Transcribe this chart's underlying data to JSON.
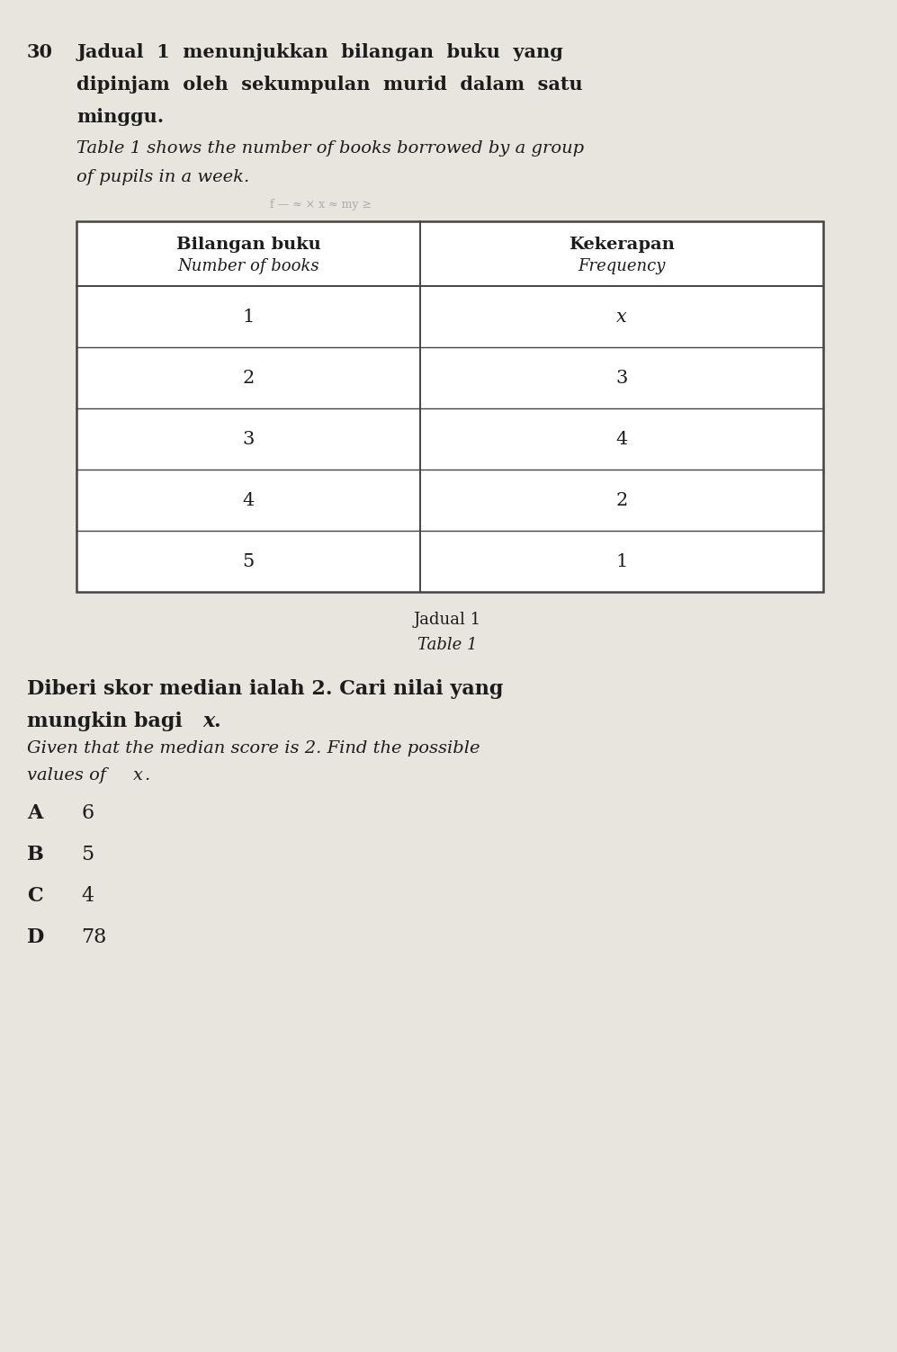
{
  "question_number": "30",
  "malay_line1": "Jadual  1  menunjukkan  bilangan  buku  yang",
  "malay_line2": "dipinjam  oleh  sekumpulan  murid  dalam  satu",
  "malay_line3": "minggu.",
  "english_line1": "Table 1 shows the number of books borrowed by a group",
  "english_line2": "of pupils in a week.",
  "col1_header1": "Bilangan buku",
  "col1_header2": "Number of books",
  "col2_header1": "Kekerapan",
  "col2_header2": "Frequency",
  "table_data": [
    [
      "1",
      "x"
    ],
    [
      "2",
      "3"
    ],
    [
      "3",
      "4"
    ],
    [
      "4",
      "2"
    ],
    [
      "5",
      "1"
    ]
  ],
  "caption1": "Jadual 1",
  "caption2": "Table 1",
  "q_malay1": "Diberi skor median ialah 2. Cari nilai yang",
  "q_malay2": "mungkin bagi ",
  "q_malay2x": "x",
  "q_malay2end": ".",
  "q_eng1": "Given that the median score is 2. Find the possible",
  "q_eng2": "values of ",
  "q_eng2x": "x",
  "q_eng2end": ".",
  "options": [
    [
      "A",
      "6"
    ],
    [
      "B",
      "5"
    ],
    [
      "C",
      "4"
    ],
    [
      "D",
      "78"
    ]
  ],
  "bg_color": "#e8e4de",
  "text_color": "#1c1c1c",
  "line_color": "#444444",
  "font_size_main": 15,
  "font_size_italic": 14,
  "font_size_table": 15,
  "font_size_caption": 13,
  "font_size_options": 16
}
